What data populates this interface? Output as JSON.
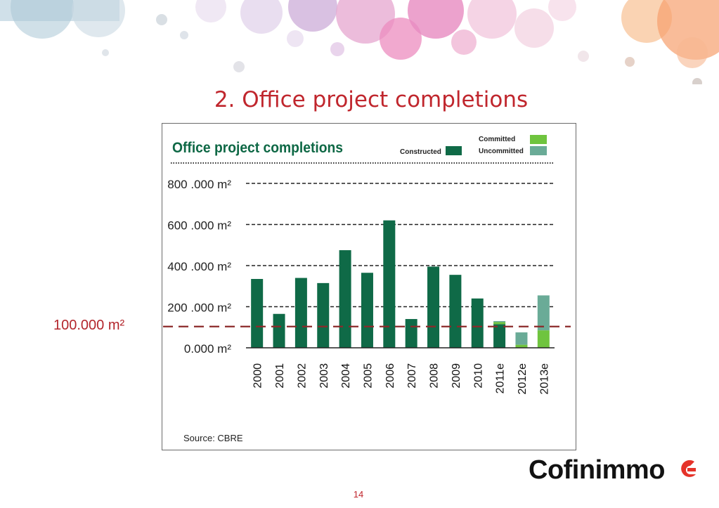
{
  "slide": {
    "title": "2. Office project completions",
    "page_number": "14",
    "reference_label": "100.000 m²",
    "logo_text": "Cofinimmo"
  },
  "colors": {
    "constructed": "#0f6a47",
    "committed": "#6fc43e",
    "uncommitted": "#6aab97",
    "title_green": "#0e6845",
    "slide_red": "#c0262d",
    "reference_line": "#8b2a2a"
  },
  "chart_data": {
    "type": "bar",
    "title": "Office project completions",
    "source": "Source: CBRE",
    "categories": [
      "2000",
      "2001",
      "2002",
      "2003",
      "2004",
      "2005",
      "2006",
      "2007",
      "2008",
      "2009",
      "2010",
      "2011e",
      "2012e",
      "2013e"
    ],
    "series": [
      {
        "name": "Constructed",
        "values": [
          335000,
          165000,
          340000,
          315000,
          475000,
          365000,
          620000,
          140000,
          395000,
          355000,
          240000,
          115000,
          0,
          0
        ]
      },
      {
        "name": "Committed",
        "values": [
          0,
          0,
          0,
          0,
          0,
          0,
          0,
          0,
          0,
          0,
          0,
          10000,
          15000,
          85000
        ]
      },
      {
        "name": "Uncommitted",
        "values": [
          0,
          0,
          0,
          0,
          0,
          0,
          0,
          0,
          0,
          0,
          0,
          5000,
          60000,
          170000
        ]
      }
    ],
    "stacked": true,
    "y_ticks": [
      "0.000 m²",
      "200 .000 m²",
      "400 .000 m²",
      "600 .000 m²",
      "800 .000 m²"
    ],
    "y_tick_values": [
      0,
      200000,
      400000,
      600000,
      800000
    ],
    "ylim": [
      0,
      800000
    ],
    "reference_line": {
      "value": 100000,
      "label": "100.000 m²"
    },
    "grid": "dashed horizontal",
    "legend_position": "top-right"
  }
}
